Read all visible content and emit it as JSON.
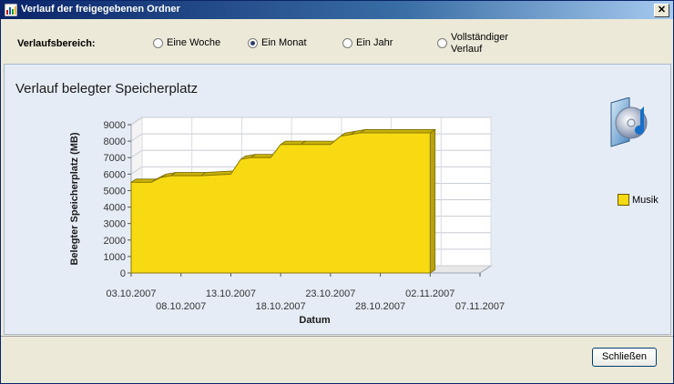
{
  "window": {
    "title": "Verlauf der freigegebenen Ordner",
    "close_glyph": "✕"
  },
  "range": {
    "label": "Verlaufsbereich:",
    "options": [
      {
        "label": "Eine Woche",
        "selected": false
      },
      {
        "label": "Ein Monat",
        "selected": true
      },
      {
        "label": "Ein Jahr",
        "selected": false
      },
      {
        "label": "Vollständiger Verlauf",
        "selected": false
      }
    ]
  },
  "panel": {
    "title": "Verlauf belegter Speicherplatz"
  },
  "legend": {
    "label": "Musik",
    "color": "#f8da12"
  },
  "buttons": {
    "close": "Schließen"
  },
  "chart_data": {
    "type": "area",
    "xlabel": "Datum",
    "ylabel": "Belegter Speicherplatz (MB)",
    "ylim": [
      0,
      9000
    ],
    "yticks": [
      0,
      1000,
      2000,
      3000,
      4000,
      5000,
      6000,
      7000,
      8000,
      9000
    ],
    "xticks": [
      "03.10.2007",
      "08.10.2007",
      "13.10.2007",
      "18.10.2007",
      "23.10.2007",
      "28.10.2007",
      "02.11.2007",
      "07.11.2007"
    ],
    "series": [
      {
        "name": "Musik",
        "color": "#f8da12",
        "x": [
          "03.10.2007",
          "05.10.2007",
          "06.10.2007",
          "07.10.2007",
          "10.10.2007",
          "13.10.2007",
          "14.10.2007",
          "15.10.2007",
          "17.10.2007",
          "18.10.2007",
          "20.10.2007",
          "23.10.2007",
          "24.10.2007",
          "25.10.2007",
          "26.10.2007",
          "02.11.2007"
        ],
        "values": [
          5500,
          5500,
          5800,
          5900,
          5900,
          6000,
          6900,
          7000,
          7000,
          7800,
          7800,
          7800,
          8300,
          8400,
          8500,
          8500
        ]
      }
    ],
    "grid": true
  }
}
